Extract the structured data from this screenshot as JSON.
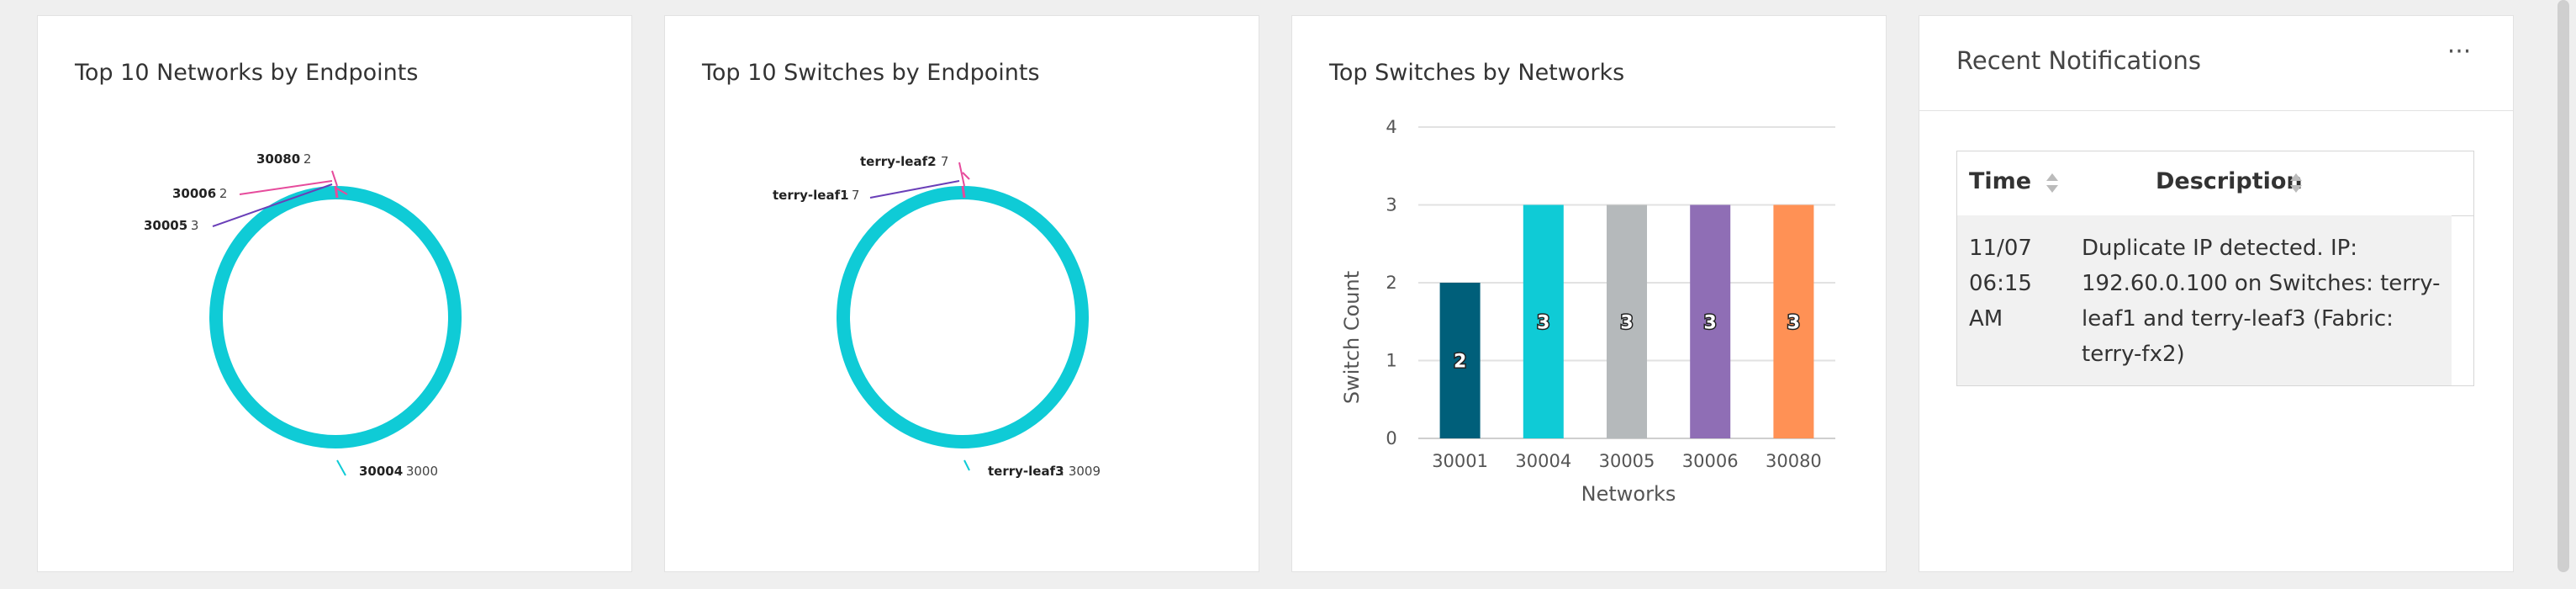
{
  "cards": {
    "networks_donut": {
      "title": "Top 10 Networks by Endpoints",
      "labels": [
        {
          "name": "30080",
          "value": "2"
        },
        {
          "name": "30006",
          "value": "2"
        },
        {
          "name": "30005",
          "value": "3"
        },
        {
          "name": "30004",
          "value": "3000"
        }
      ]
    },
    "switches_donut": {
      "title": "Top 10 Switches by Endpoints",
      "labels": [
        {
          "name": "terry-leaf2",
          "value": "7"
        },
        {
          "name": "terry-leaf1",
          "value": "7"
        },
        {
          "name": "terry-leaf3",
          "value": "3009"
        }
      ]
    },
    "switches_bar": {
      "title": "Top Switches by Networks"
    },
    "notifications": {
      "title": "Recent Notifications",
      "more": "···",
      "columns": {
        "time": "Time",
        "description": "Description"
      },
      "rows": [
        {
          "time": "11/07 06:15 AM",
          "description": "Duplicate IP detected. IP: 192.60.0.100 on Switches: terry-leaf1 and terry-leaf3 (Fabric: terry-fx2)"
        }
      ]
    }
  },
  "colors": {
    "teal": "#0fcbd6",
    "darkteal": "#005f7a",
    "gray": "#b5b9bb",
    "purple": "#8f6eb5",
    "orange": "#ff9155",
    "magenta": "#e64b9c",
    "violet": "#6a3fb8"
  },
  "chart_data": [
    {
      "type": "pie",
      "title": "Top 10 Networks by Endpoints",
      "categories": [
        "30004",
        "30005",
        "30006",
        "30080"
      ],
      "values": [
        3000,
        3,
        2,
        2
      ]
    },
    {
      "type": "pie",
      "title": "Top 10 Switches by Endpoints",
      "categories": [
        "terry-leaf3",
        "terry-leaf1",
        "terry-leaf2"
      ],
      "values": [
        3009,
        7,
        7
      ]
    },
    {
      "type": "bar",
      "title": "Top Switches by Networks",
      "categories": [
        "30001",
        "30004",
        "30005",
        "30006",
        "30080"
      ],
      "values": [
        2,
        3,
        3,
        3,
        3
      ],
      "xlabel": "Networks",
      "ylabel": "Switch Count",
      "ylim": [
        0,
        4
      ],
      "yticks": [
        "0",
        "1",
        "2",
        "3",
        "4"
      ],
      "bar_colors": [
        "#005f7a",
        "#0fcbd6",
        "#b5b9bb",
        "#8f6eb5",
        "#ff9155"
      ],
      "grid": true
    }
  ]
}
